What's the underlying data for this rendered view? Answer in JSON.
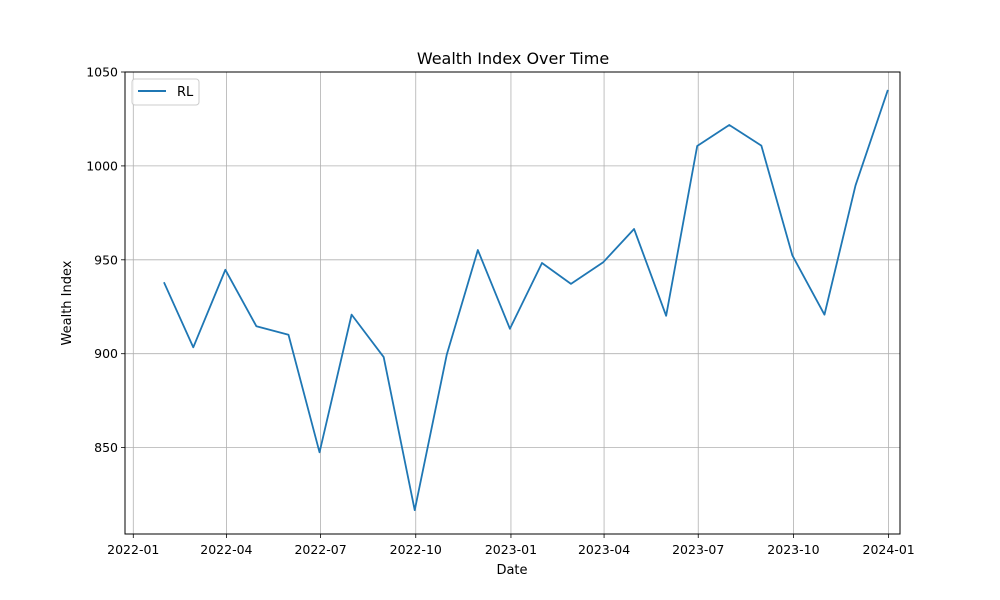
{
  "chart_data": {
    "type": "line",
    "title": "Wealth Index Over Time",
    "xlabel": "Date",
    "ylabel": "Wealth Index",
    "x_ticks": [
      "2022-01",
      "2022-04",
      "2022-07",
      "2022-10",
      "2023-01",
      "2023-04",
      "2023-07",
      "2023-10",
      "2024-01"
    ],
    "y_ticks": [
      850,
      900,
      950,
      1000,
      1050
    ],
    "xlim": [
      "2021-12-24",
      "2024-01-12"
    ],
    "ylim": [
      804,
      1050
    ],
    "grid": true,
    "legend_position": "upper-left",
    "series": [
      {
        "name": "RL",
        "color": "#1f77b4",
        "x": [
          "2022-01-31",
          "2022-02-28",
          "2022-03-31",
          "2022-04-30",
          "2022-05-31",
          "2022-06-30",
          "2022-07-31",
          "2022-08-31",
          "2022-09-30",
          "2022-10-31",
          "2022-11-30",
          "2022-12-31",
          "2023-01-31",
          "2023-02-28",
          "2023-03-31",
          "2023-04-30",
          "2023-05-31",
          "2023-06-30",
          "2023-07-31",
          "2023-08-31",
          "2023-09-30",
          "2023-10-31",
          "2023-11-30",
          "2023-12-31"
        ],
        "y": [
          937.6,
          903.4,
          944.7,
          914.6,
          910.1,
          847.5,
          920.8,
          898.2,
          816.7,
          899.6,
          955.2,
          913.3,
          948.3,
          937.2,
          948.6,
          966.4,
          920.2,
          1010.6,
          1021.8,
          1010.8,
          952.3,
          920.8,
          989.6,
          1040.0
        ]
      }
    ]
  }
}
